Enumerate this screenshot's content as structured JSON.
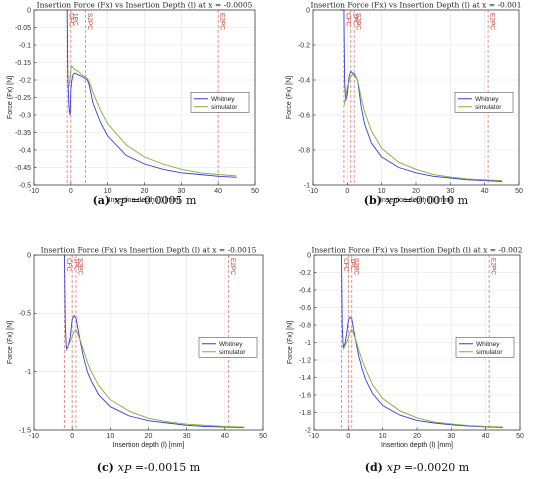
{
  "chart_data": [
    {
      "type": "line",
      "title": "Insertion Force (Fx) vs Insertion Depth (l) at x = -0.0005",
      "xlabel": "Insertion depth (l) [mm]",
      "ylabel": "Force (Fx) [N]",
      "xlim": [
        -10,
        50
      ],
      "ylim": [
        -0.5,
        0
      ],
      "xticks": [
        -10,
        0,
        10,
        20,
        30,
        40,
        50
      ],
      "yticks": [
        -0.5,
        -0.45,
        -0.4,
        -0.35,
        -0.3,
        -0.25,
        -0.2,
        -0.15,
        -0.1,
        -0.05,
        0
      ],
      "grid": true,
      "legend_position": "middle-right",
      "vlines": [
        {
          "label": "CFC",
          "x": -1
        },
        {
          "label": "1PC",
          "x": 0
        },
        {
          "label": "S2PC",
          "x": 4
        },
        {
          "label": "E2PC",
          "x": 40
        }
      ],
      "series": [
        {
          "name": "Whitney",
          "color": "#3b3bd6",
          "x": [
            -1,
            -0.8,
            -0.5,
            -0.2,
            0,
            0.3,
            0.6,
            1,
            2,
            3,
            4.5,
            5,
            6,
            8,
            10,
            15,
            20,
            25,
            30,
            35,
            40,
            45
          ],
          "y": [
            0,
            -0.2,
            -0.28,
            -0.3,
            -0.23,
            -0.2,
            -0.185,
            -0.18,
            -0.185,
            -0.19,
            -0.2,
            -0.215,
            -0.265,
            -0.32,
            -0.36,
            -0.415,
            -0.44,
            -0.455,
            -0.465,
            -0.47,
            -0.475,
            -0.478
          ]
        },
        {
          "name": "simulator",
          "color": "#7fae3a",
          "x": [
            -0.5,
            0,
            0.3,
            0.6,
            1,
            2,
            3,
            4.5,
            5,
            6,
            8,
            10,
            15,
            20,
            25,
            30,
            35,
            40,
            45
          ],
          "y": [
            -0.22,
            -0.17,
            -0.16,
            -0.165,
            -0.17,
            -0.175,
            -0.185,
            -0.195,
            -0.205,
            -0.235,
            -0.285,
            -0.325,
            -0.385,
            -0.42,
            -0.44,
            -0.455,
            -0.465,
            -0.47,
            -0.474
          ]
        }
      ],
      "caption_letter": "(a)",
      "caption_text": "=-0.0005 m"
    },
    {
      "type": "line",
      "title": "Insertion Force (Fx) vs Insertion Depth (l) at x = -0.001",
      "xlabel": "Insertion depth (l) [mm]",
      "ylabel": "Force (Fx) [N]",
      "xlim": [
        -10,
        50
      ],
      "ylim": [
        -1,
        0
      ],
      "xticks": [
        -10,
        0,
        10,
        20,
        30,
        40,
        50
      ],
      "yticks": [
        -1,
        -0.8,
        -0.6,
        -0.4,
        -0.2,
        0
      ],
      "grid": true,
      "legend_position": "middle-right",
      "vlines": [
        {
          "label": "CFC",
          "x": -1
        },
        {
          "label": "1PC",
          "x": 1
        },
        {
          "label": "S2PC",
          "x": 2
        },
        {
          "label": "E2PC",
          "x": 41
        }
      ],
      "series": [
        {
          "name": "Whitney",
          "color": "#3b3bd6",
          "x": [
            -2,
            -1,
            -0.8,
            -0.5,
            0,
            0.5,
            1,
            2,
            3,
            4,
            5,
            7,
            10,
            15,
            20,
            25,
            30,
            35,
            40,
            45
          ],
          "y": [
            0,
            0,
            -0.4,
            -0.52,
            -0.48,
            -0.38,
            -0.35,
            -0.37,
            -0.4,
            -0.55,
            -0.65,
            -0.76,
            -0.84,
            -0.9,
            -0.93,
            -0.95,
            -0.96,
            -0.97,
            -0.975,
            -0.98
          ]
        },
        {
          "name": "simulator",
          "color": "#7fae3a",
          "x": [
            -1,
            -0.5,
            0,
            1,
            2,
            3,
            4,
            5,
            7,
            10,
            15,
            20,
            25,
            30,
            35,
            40,
            45
          ],
          "y": [
            -0.55,
            -0.5,
            -0.44,
            -0.38,
            -0.36,
            -0.4,
            -0.5,
            -0.58,
            -0.69,
            -0.79,
            -0.87,
            -0.91,
            -0.94,
            -0.955,
            -0.965,
            -0.97,
            -0.975
          ]
        }
      ],
      "caption_letter": "(b)",
      "caption_text": "=-0.0010 m"
    },
    {
      "type": "line",
      "title": "Insertion Force (Fx) vs Insertion Depth (l) at x = -0.0015",
      "xlabel": "Insertion depth (l) [mm]",
      "ylabel": "Force (Fx) [N]",
      "xlim": [
        -10,
        50
      ],
      "ylim": [
        -1.5,
        0
      ],
      "xticks": [
        -10,
        0,
        10,
        20,
        30,
        40,
        50
      ],
      "yticks": [
        -1.5,
        -1,
        -0.5,
        0
      ],
      "grid": true,
      "legend_position": "middle-right",
      "vlines": [
        {
          "label": "CFC",
          "x": -2
        },
        {
          "label": "1PC",
          "x": 0
        },
        {
          "label": "S2PC",
          "x": 1
        },
        {
          "label": "E2PC",
          "x": 41
        }
      ],
      "series": [
        {
          "name": "Whitney",
          "color": "#3b3bd6",
          "x": [
            -2,
            -1.8,
            -1.5,
            -1,
            -0.5,
            0,
            0.5,
            1,
            2,
            3,
            4,
            5,
            7,
            10,
            15,
            20,
            25,
            30,
            35,
            40,
            45
          ],
          "y": [
            0,
            -0.6,
            -0.8,
            -0.78,
            -0.7,
            -0.55,
            -0.52,
            -0.54,
            -0.72,
            -0.88,
            -1.0,
            -1.08,
            -1.2,
            -1.3,
            -1.38,
            -1.42,
            -1.44,
            -1.46,
            -1.47,
            -1.475,
            -1.48
          ]
        },
        {
          "name": "simulator",
          "color": "#7fae3a",
          "x": [
            -1.5,
            -1,
            0,
            0.5,
            1,
            2,
            3,
            4,
            5,
            7,
            10,
            15,
            20,
            25,
            30,
            35,
            40,
            45
          ],
          "y": [
            -0.82,
            -0.78,
            -0.7,
            -0.66,
            -0.64,
            -0.72,
            -0.82,
            -0.92,
            -1.0,
            -1.12,
            -1.24,
            -1.34,
            -1.4,
            -1.43,
            -1.45,
            -1.46,
            -1.47,
            -1.475
          ]
        }
      ],
      "caption_letter": "(c)",
      "caption_text": "=-0.0015 m"
    },
    {
      "type": "line",
      "title": "Insertion Force (Fx) vs Insertion Depth (l) at x = -0.002",
      "xlabel": "Insertion depth (l) [mm]",
      "ylabel": "Force (Fx) [N]",
      "xlim": [
        -10,
        50
      ],
      "ylim": [
        -2,
        0
      ],
      "xticks": [
        -10,
        0,
        10,
        20,
        30,
        40,
        50
      ],
      "yticks": [
        -2,
        -1.8,
        -1.6,
        -1.4,
        -1.2,
        -1,
        -0.8,
        -0.6,
        -0.4,
        -0.2,
        0
      ],
      "grid": true,
      "legend_position": "middle-right",
      "vlines": [
        {
          "label": "CFC",
          "x": -2
        },
        {
          "label": "1PC",
          "x": 0
        },
        {
          "label": "S2PC",
          "x": 1
        },
        {
          "label": "E2PC",
          "x": 41
        }
      ],
      "series": [
        {
          "name": "Whitney",
          "color": "#3b3bd6",
          "x": [
            -2,
            -1.8,
            -1.5,
            -1,
            -0.5,
            0,
            0.5,
            1,
            2,
            3,
            4,
            5,
            7,
            10,
            15,
            20,
            25,
            30,
            35,
            40,
            45
          ],
          "y": [
            0,
            -0.8,
            -1.05,
            -1.02,
            -0.9,
            -0.75,
            -0.71,
            -0.73,
            -0.95,
            -1.15,
            -1.3,
            -1.42,
            -1.58,
            -1.72,
            -1.83,
            -1.89,
            -1.92,
            -1.94,
            -1.955,
            -1.965,
            -1.97
          ]
        },
        {
          "name": "simulator",
          "color": "#7fae3a",
          "x": [
            -1.5,
            -1,
            0,
            0.5,
            1,
            2,
            3,
            4,
            5,
            7,
            10,
            15,
            20,
            25,
            30,
            35,
            40,
            45
          ],
          "y": [
            -1.08,
            -1.04,
            -0.95,
            -0.88,
            -0.85,
            -0.95,
            -1.08,
            -1.2,
            -1.3,
            -1.48,
            -1.64,
            -1.78,
            -1.86,
            -1.91,
            -1.93,
            -1.95,
            -1.96,
            -1.965
          ]
        }
      ],
      "caption_letter": "(d)",
      "caption_text": "=-0.0020 m"
    }
  ]
}
